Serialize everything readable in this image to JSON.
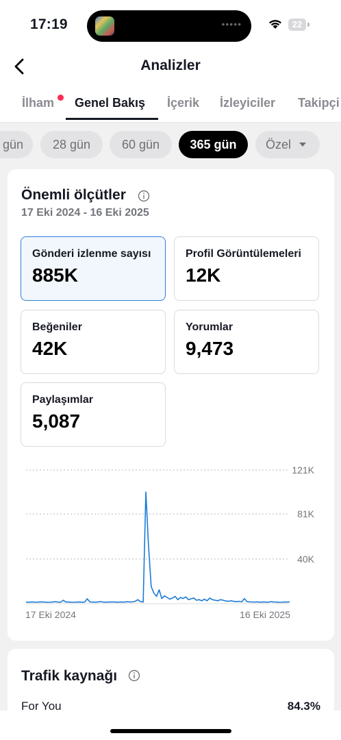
{
  "status": {
    "time": "17:19",
    "battery": "22"
  },
  "header": {
    "title": "Analizler"
  },
  "tabs": [
    {
      "label": "İlham",
      "has_dot": true
    },
    {
      "label": "Genel Bakış",
      "active": true
    },
    {
      "label": "İçerik"
    },
    {
      "label": "İzleyiciler"
    },
    {
      "label": "Takipçi"
    }
  ],
  "ranges": [
    {
      "label": "gün"
    },
    {
      "label": "28 gün"
    },
    {
      "label": "60 gün"
    },
    {
      "label": "365 gün",
      "active": true
    },
    {
      "label": "Özel"
    }
  ],
  "key_metrics": {
    "title": "Önemli ölçütler",
    "date_range": "17 Eki 2024 - 16 Eki 2025",
    "items": [
      {
        "label": "Gönderi izlenme sayısı",
        "value": "885K",
        "selected": true
      },
      {
        "label": "Profil Görüntülemeleri",
        "value": "12K"
      },
      {
        "label": "Beğeniler",
        "value": "42K"
      },
      {
        "label": "Yorumlar",
        "value": "9,473"
      },
      {
        "label": "Paylaşımlar",
        "value": "5,087"
      }
    ]
  },
  "chart_data": {
    "type": "line",
    "title": "",
    "xlabel": "",
    "ylabel": "",
    "x_start_label": "17 Eki 2024",
    "x_end_label": "16 Eki 2025",
    "y_ticks": [
      "40K",
      "81K",
      "121K"
    ],
    "y_tick_values": [
      40000,
      81000,
      121000
    ],
    "ylim": [
      0,
      121000
    ],
    "grid": true,
    "color": "#1a7ad6",
    "series": [
      {
        "values": [
          800,
          700,
          900,
          800,
          600,
          900,
          1000,
          800,
          700,
          600,
          900,
          1100,
          800,
          700,
          2500,
          800,
          900,
          700,
          600,
          800,
          900,
          700,
          800,
          3800,
          900,
          800,
          700,
          900,
          1200,
          800,
          700,
          900,
          800,
          1000,
          700,
          800,
          900,
          800,
          1100,
          900,
          1000,
          1500,
          3000,
          1200,
          800,
          101000,
          52000,
          15000,
          9000,
          6000,
          12000,
          4000,
          6500,
          5000,
          3500,
          4500,
          6000,
          3000,
          5000,
          4000,
          5500,
          3000,
          3800,
          4500,
          2500,
          3000,
          2000,
          3500,
          2000,
          4500,
          3000,
          2500,
          2000,
          3000,
          2500,
          1800,
          1500,
          2000,
          1500,
          1200,
          1500,
          1000,
          4000,
          1200,
          1000,
          900,
          800,
          1000,
          700,
          900,
          800,
          700,
          1200,
          900,
          800,
          700,
          600,
          900,
          800,
          1000
        ]
      }
    ]
  },
  "traffic": {
    "title": "Trafik kaynağı",
    "rows": [
      {
        "name": "For You",
        "value": "84.3%"
      }
    ]
  }
}
